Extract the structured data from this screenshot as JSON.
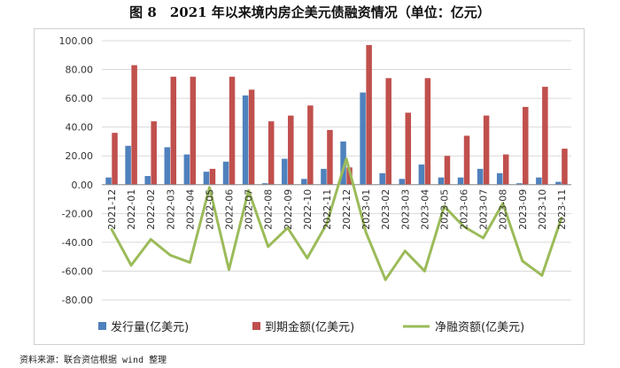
{
  "figure": {
    "title": "图 8　2021 年以来境内房企美元债融资情况（单位：亿元）",
    "source": "资料来源：联合资信根据 wind 整理"
  },
  "chart_data": {
    "type": "bar",
    "categories": [
      "2021-12",
      "2022-01",
      "2022-02",
      "2022-03",
      "2022-04",
      "2022-05",
      "2022-06",
      "2022-07",
      "2022-08",
      "2022-09",
      "2022-10",
      "2022-11",
      "2022-12",
      "2023-01",
      "2023-02",
      "2023-03",
      "2023-04",
      "2023-05",
      "2023-06",
      "2023-07",
      "2023-08",
      "2023-09",
      "2023-10",
      "2023-11"
    ],
    "series": [
      {
        "name": "发行量(亿美元)",
        "kind": "bar",
        "color": "#4f81bd",
        "values": [
          5,
          27,
          6,
          26,
          21,
          9,
          16,
          62,
          1,
          18,
          4,
          11,
          30,
          64,
          8,
          4,
          14,
          5,
          5,
          11,
          8,
          1,
          5,
          2
        ]
      },
      {
        "name": "到期金额(亿美元)",
        "kind": "bar",
        "color": "#c0504d",
        "values": [
          36,
          83,
          44,
          75,
          75,
          11,
          75,
          66,
          44,
          48,
          55,
          38,
          12,
          97,
          74,
          50,
          74,
          20,
          34,
          48,
          21,
          54,
          68,
          25
        ]
      },
      {
        "name": "净融资额(亿美元)",
        "kind": "line",
        "color": "#9bbb59",
        "values": [
          -31,
          -56,
          -38,
          -49,
          -54,
          -2,
          -59,
          -4,
          -43,
          -30,
          -51,
          -27,
          18,
          -33,
          -66,
          -46,
          -60,
          -15,
          -29,
          -37,
          -13,
          -53,
          -63,
          -23
        ]
      }
    ],
    "y_ticks": [
      "100.00",
      "80.00",
      "60.00",
      "40.00",
      "20.00",
      "0.00",
      "-20.00",
      "-40.00",
      "-60.00",
      "-80.00"
    ],
    "ylim": [
      -80,
      100
    ],
    "ytick_step": 20,
    "xlabel": "",
    "ylabel": "",
    "grid": true,
    "legend_position": "bottom"
  }
}
